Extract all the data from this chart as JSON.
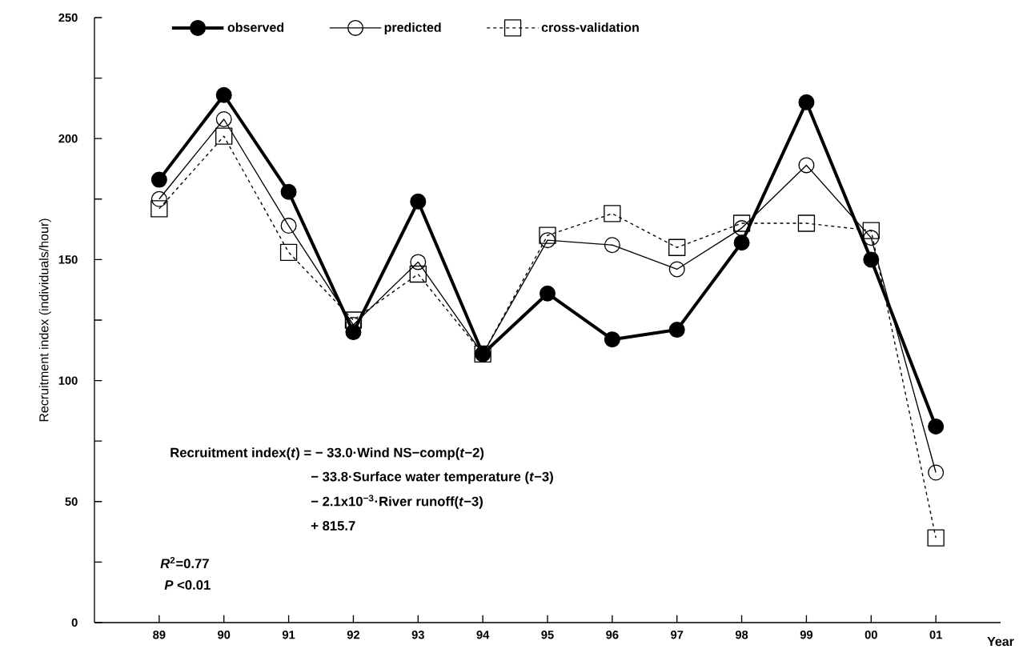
{
  "chart_data": {
    "type": "line",
    "ylabel": "Recruitment index (individuals/hour)",
    "xlabel": "Year",
    "categories": [
      "89",
      "90",
      "91",
      "92",
      "93",
      "94",
      "95",
      "96",
      "97",
      "98",
      "99",
      "00",
      "01"
    ],
    "series": [
      {
        "name": "observed",
        "color": "#000000",
        "marker": "circle",
        "line_style": "solid",
        "values": [
          183,
          218,
          178,
          120,
          174,
          111,
          136,
          117,
          121,
          157,
          215,
          150,
          81
        ]
      },
      {
        "name": "predicted",
        "color": "#000000",
        "marker": "circle",
        "line_style": "solid",
        "values": [
          175,
          208,
          164,
          123,
          149,
          111,
          158,
          156,
          146,
          163,
          189,
          159,
          62
        ]
      },
      {
        "name": "cross-validation",
        "color": "#000000",
        "marker": "square",
        "line_style": "dashed",
        "values": [
          171,
          201,
          153,
          125,
          144,
          111,
          160,
          169,
          155,
          165,
          165,
          162,
          35
        ]
      }
    ],
    "ylim": [
      0,
      250
    ],
    "yticks": [
      0,
      {
        "value": 25,
        "label": null
      },
      50,
      {
        "value": 75,
        "label": null
      },
      100,
      {
        "value": 125,
        "label": null
      },
      150,
      {
        "value": 175,
        "label": null
      },
      200,
      {
        "value": 225,
        "label": null
      },
      250
    ],
    "legend": "top",
    "annotations": [
      "Recruitment index(*t*) = − 33.0·Wind NS−comp(*t*−2)",
      "− 33.8·Surface water temperature (*t*−3)",
      "− 2.1x10$^{−3}$·River runoff(*t*−3)",
      "+ 815.7",
      "*R*$^{2}$=0.77",
      "*P* <0.01"
    ]
  }
}
